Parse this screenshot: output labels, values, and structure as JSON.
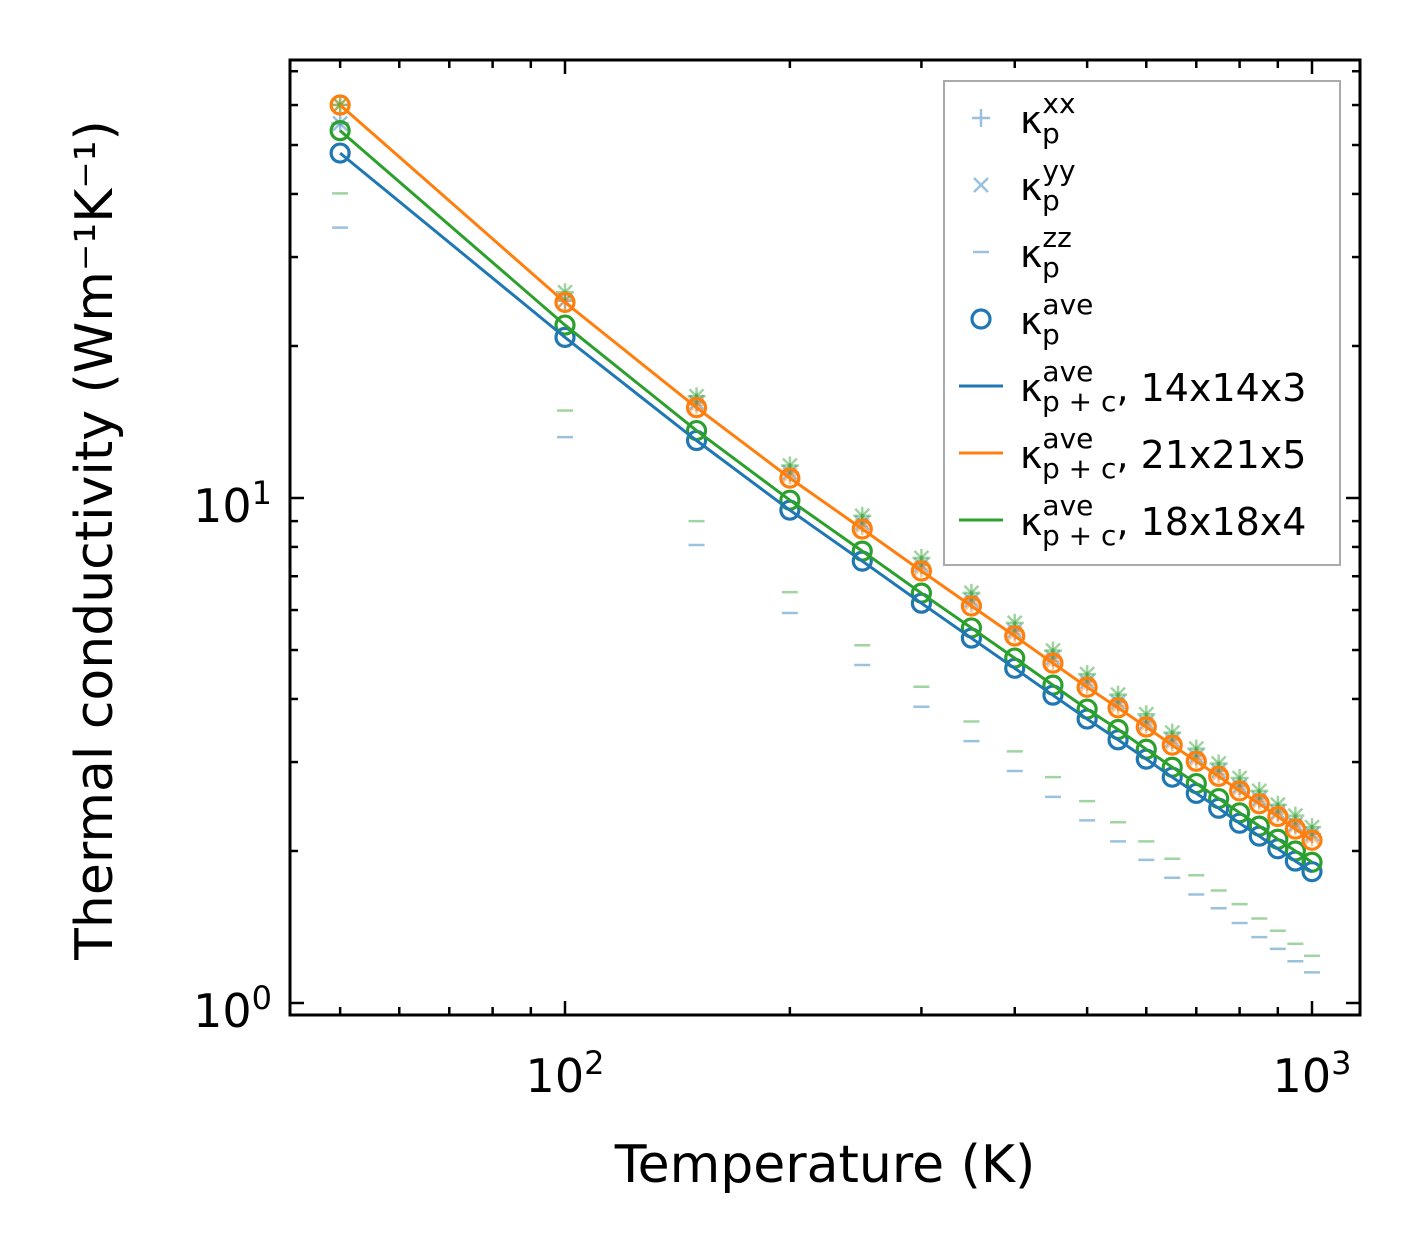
{
  "chart_data": {
    "type": "scatter",
    "title": "",
    "xlabel": "Temperature (K)",
    "ylabel": "Thermal conductivity (Wm⁻¹K⁻¹)",
    "xscale": "log",
    "yscale": "log",
    "xlim": [
      43,
      1160
    ],
    "ylim": [
      0.947,
      73.6
    ],
    "grid": false,
    "legend_position": "top-right",
    "x_tick_labels": [
      {
        "base": "10",
        "exp": "2",
        "value": 100
      },
      {
        "base": "10",
        "exp": "3",
        "value": 1000
      }
    ],
    "y_tick_labels": [
      {
        "base": "10",
        "exp": "0",
        "value": 1
      },
      {
        "base": "10",
        "exp": "1",
        "value": 10
      }
    ],
    "x": [
      50,
      100,
      150,
      200,
      250,
      300,
      350,
      400,
      450,
      500,
      550,
      600,
      650,
      700,
      750,
      800,
      850,
      900,
      950,
      1000
    ],
    "series": [
      {
        "name": "14x14x3",
        "color": "#1f77b4",
        "ave": [
          48.2,
          20.8,
          13.0,
          9.46,
          7.5,
          6.19,
          5.28,
          4.6,
          4.07,
          3.65,
          3.32,
          3.04,
          2.8,
          2.6,
          2.43,
          2.27,
          2.14,
          2.02,
          1.91,
          1.82
        ],
        "xx": [
          55.15,
          24.6,
          15.47,
          11.23,
          8.92,
          7.36,
          6.27,
          5.46,
          4.83,
          4.33,
          3.94,
          3.6,
          3.32,
          3.08,
          2.88,
          2.69,
          2.54,
          2.39,
          2.26,
          2.16
        ],
        "yy": [
          55.15,
          24.6,
          15.47,
          11.23,
          8.92,
          7.36,
          6.27,
          5.46,
          4.83,
          4.33,
          3.94,
          3.6,
          3.32,
          3.08,
          2.88,
          2.69,
          2.54,
          2.39,
          2.26,
          2.16
        ],
        "zz": [
          34.3,
          13.2,
          8.07,
          5.92,
          4.67,
          3.86,
          3.3,
          2.88,
          2.56,
          2.3,
          2.09,
          1.92,
          1.77,
          1.64,
          1.54,
          1.44,
          1.35,
          1.28,
          1.21,
          1.15
        ]
      },
      {
        "name": "21x21x5",
        "color": "#ff7f0e",
        "ave": [
          60.0,
          24.4,
          15.1,
          10.95,
          8.68,
          7.17,
          6.11,
          5.33,
          4.71,
          4.22,
          3.84,
          3.52,
          3.24,
          3.01,
          2.81,
          2.63,
          2.48,
          2.34,
          2.21,
          2.1
        ],
        "xx": [
          60.0,
          24.6,
          15.3,
          11.1,
          8.8,
          7.25,
          6.18,
          5.39,
          4.76,
          4.27,
          3.88,
          3.56,
          3.28,
          3.04,
          2.84,
          2.66,
          2.51,
          2.37,
          2.24,
          2.13
        ],
        "yy": [
          60.0,
          24.6,
          15.3,
          11.1,
          8.8,
          7.25,
          6.18,
          5.39,
          4.76,
          4.27,
          3.88,
          3.56,
          3.28,
          3.04,
          2.84,
          2.66,
          2.51,
          2.37,
          2.24,
          2.13
        ],
        "zz": [
          60.0,
          24.0,
          14.7,
          10.65,
          8.44,
          6.98,
          5.95,
          5.2,
          4.6,
          4.12,
          3.75,
          3.44,
          3.16,
          2.94,
          2.75,
          2.57,
          2.42,
          2.28,
          2.16,
          2.05
        ]
      },
      {
        "name": "18x18x4",
        "color": "#2ca02c",
        "ave": [
          53.4,
          22.0,
          13.6,
          9.9,
          7.85,
          6.48,
          5.53,
          4.82,
          4.26,
          3.82,
          3.48,
          3.18,
          2.93,
          2.72,
          2.54,
          2.38,
          2.24,
          2.11,
          2.0,
          1.9
        ],
        "xx": [
          60.05,
          25.55,
          15.9,
          11.6,
          9.22,
          7.61,
          6.49,
          5.66,
          4.99,
          4.48,
          4.08,
          3.73,
          3.43,
          3.19,
          2.98,
          2.79,
          2.63,
          2.47,
          2.35,
          2.23
        ],
        "yy": [
          60.05,
          25.55,
          15.9,
          11.6,
          9.22,
          7.61,
          6.49,
          5.66,
          4.99,
          4.48,
          4.08,
          3.73,
          3.43,
          3.19,
          2.98,
          2.79,
          2.63,
          2.47,
          2.35,
          2.23
        ],
        "zz": [
          40.1,
          14.9,
          9.0,
          6.51,
          5.11,
          4.23,
          3.61,
          3.15,
          2.8,
          2.51,
          2.28,
          2.09,
          1.93,
          1.79,
          1.67,
          1.57,
          1.47,
          1.39,
          1.31,
          1.24
        ]
      }
    ],
    "legend": [
      {
        "symbol": "plus",
        "color": "#1f77b4",
        "main": "κ",
        "sup": "xx",
        "sub": "p",
        "suffix": ""
      },
      {
        "symbol": "cross",
        "color": "#1f77b4",
        "main": "κ",
        "sup": "yy",
        "sub": "p",
        "suffix": ""
      },
      {
        "symbol": "dash",
        "color": "#1f77b4",
        "main": "κ",
        "sup": "zz",
        "sub": "p",
        "suffix": ""
      },
      {
        "symbol": "circle",
        "color": "#1f77b4",
        "main": "κ",
        "sup": "ave",
        "sub": "p",
        "suffix": ""
      },
      {
        "symbol": "line",
        "color": "#1f77b4",
        "main": "κ",
        "sup": "ave",
        "sub": "p + c",
        "suffix": ", 14x14x3"
      },
      {
        "symbol": "line",
        "color": "#ff7f0e",
        "main": "κ",
        "sup": "ave",
        "sub": "p + c",
        "suffix": ", 21x21x5"
      },
      {
        "symbol": "line",
        "color": "#2ca02c",
        "main": "κ",
        "sup": "ave",
        "sub": "p + c",
        "suffix": ", 18x18x4"
      }
    ]
  }
}
